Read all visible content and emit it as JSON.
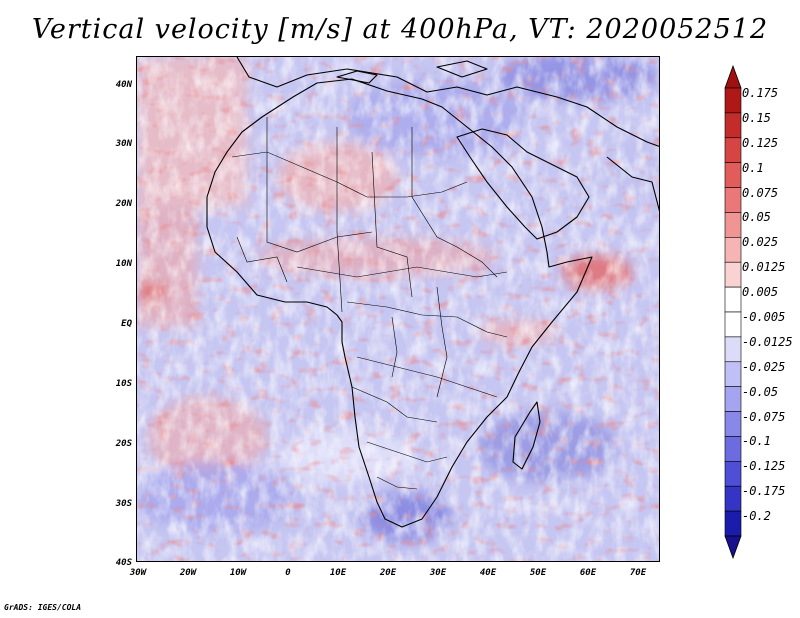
{
  "title": "Vertical velocity [m/s] at 400hPa, VT: 2020052512",
  "footer": "GrADS: IGES/COLA",
  "map": {
    "region": "Africa",
    "lon_range": [
      -30,
      75
    ],
    "lat_range": [
      -40,
      45
    ],
    "lat_ticks": [
      "40N",
      "30N",
      "20N",
      "10N",
      "EQ",
      "10S",
      "20S",
      "30S",
      "40S"
    ],
    "lon_ticks": [
      "30W",
      "20W",
      "10W",
      "0",
      "10E",
      "20E",
      "30E",
      "40E",
      "50E",
      "60E",
      "70E"
    ]
  },
  "colorbar": {
    "labels": [
      "0.175",
      "0.15",
      "0.125",
      "0.1",
      "0.075",
      "0.05",
      "0.025",
      "0.0125",
      "0.005",
      "-0.005",
      "-0.0125",
      "-0.025",
      "-0.05",
      "-0.075",
      "-0.1",
      "-0.125",
      "-0.175",
      "-0.2"
    ],
    "colors": [
      "#b01818",
      "#c42c2c",
      "#d64444",
      "#e25c5c",
      "#ea7878",
      "#f09494",
      "#f6b4b4",
      "#fad2d2",
      "#ffffff",
      "#ffffff",
      "#dcdcfa",
      "#c0c0f6",
      "#a4a4f0",
      "#8888e8",
      "#6c6ce0",
      "#4e4ed6",
      "#3434c6",
      "#1c1cac"
    ],
    "top_arrow_color": "#a01010",
    "bottom_arrow_color": "#18108c"
  },
  "colors": {
    "up_strong": "#d44040",
    "up_weak": "#f0a8a8",
    "down_weak": "#b8b8f0",
    "down_strong": "#5050d0",
    "land_outline": "#000000"
  }
}
